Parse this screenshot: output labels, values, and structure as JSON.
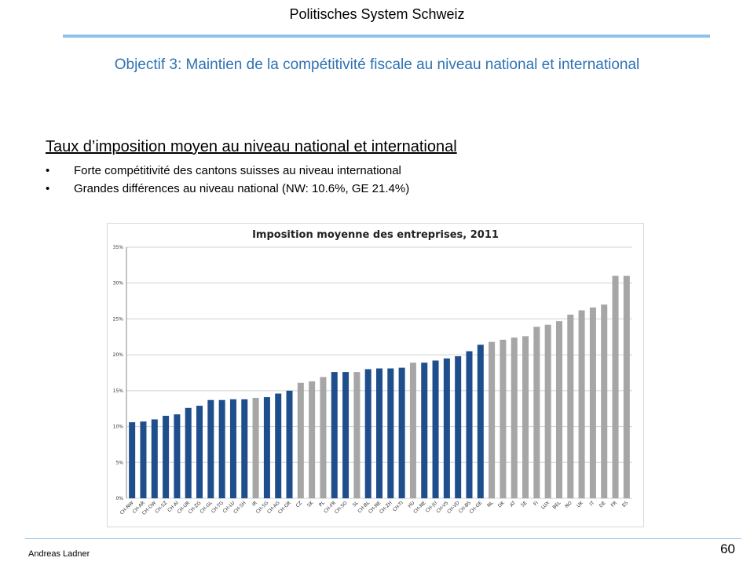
{
  "header": {
    "title": "Politisches System Schweiz"
  },
  "slide": {
    "title": "Objectif 3: Maintien de la compétitivité fiscale au niveau national et international",
    "subheading": "Taux d’imposition moyen au niveau national et international",
    "bullets": [
      "Forte compétitivité des cantons suisses au niveau international",
      "Grandes différences au niveau national (NW: 10.6%, GE  21.4%)"
    ]
  },
  "footer": {
    "author": "Andreas Ladner",
    "page": "60"
  },
  "colors": {
    "accent": "#2e72b4",
    "rule": "#8ec2ea",
    "swiss_bar": "#1f4e8c",
    "intl_bar": "#a6a6a6",
    "grid": "#d0d0d0"
  },
  "chart_data": {
    "type": "bar",
    "title": "Imposition moyenne des entreprises, 2011",
    "xlabel": "",
    "ylabel": "",
    "ylim": [
      0,
      35
    ],
    "yticks": [
      "0%",
      "5%",
      "10%",
      "15%",
      "20%",
      "25%",
      "30%",
      "35%"
    ],
    "grid": true,
    "categories": [
      "CH-NW",
      "CH-AR",
      "CH-OW",
      "CH-SZ",
      "CH-AI",
      "CH-UR",
      "CH-ZG",
      "CH-GL",
      "CH-TG",
      "CH-LU",
      "CH-SH",
      "IR",
      "CH-SG",
      "CH-AG",
      "CH-GR",
      "CZ",
      "SK",
      "PL",
      "CH-FR",
      "CH-SO",
      "SL",
      "CH-BL",
      "CH-NE",
      "CH-ZH",
      "CH-TI",
      "HU",
      "CH-NE",
      "CH-JU",
      "CH-VS",
      "CH-VD",
      "CH-BS",
      "CH-GE",
      "NL",
      "DK",
      "AT",
      "SE",
      "FI",
      "LUX",
      "BEL",
      "NO",
      "UK",
      "IT",
      "DE",
      "FR",
      "ES"
    ],
    "values": [
      10.6,
      10.7,
      11.0,
      11.5,
      11.7,
      12.6,
      12.9,
      13.7,
      13.7,
      13.8,
      13.8,
      14.0,
      14.1,
      14.6,
      15.0,
      16.1,
      16.3,
      16.9,
      17.6,
      17.6,
      17.6,
      18.0,
      18.1,
      18.1,
      18.2,
      18.9,
      18.9,
      19.2,
      19.5,
      19.8,
      20.5,
      21.4,
      21.8,
      22.1,
      22.4,
      22.6,
      23.9,
      24.2,
      24.7,
      25.6,
      26.2,
      26.6,
      27.0,
      31.0,
      31.0
    ],
    "swiss": [
      true,
      true,
      true,
      true,
      true,
      true,
      true,
      true,
      true,
      true,
      true,
      false,
      true,
      true,
      true,
      false,
      false,
      false,
      true,
      true,
      false,
      true,
      true,
      true,
      true,
      false,
      true,
      true,
      true,
      true,
      true,
      true,
      false,
      false,
      false,
      false,
      false,
      false,
      false,
      false,
      false,
      false,
      false,
      false,
      false
    ]
  }
}
